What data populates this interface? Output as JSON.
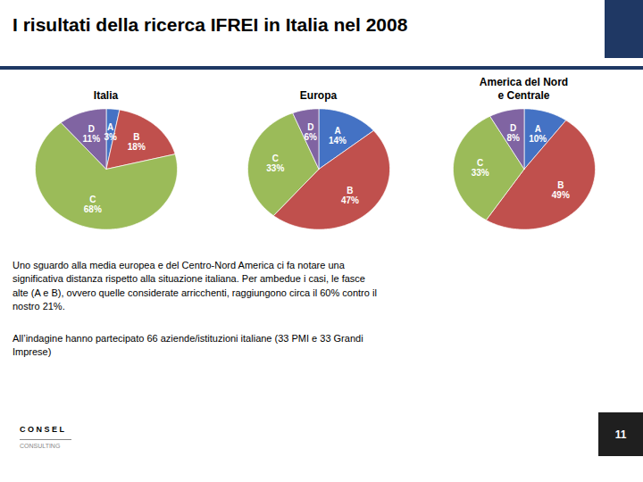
{
  "title": "I risultati della ricerca IFREI in Italia nel 2008",
  "chart_data": [
    {
      "type": "pie",
      "title": "Italia",
      "categories": [
        "A",
        "B",
        "C",
        "D"
      ],
      "values": [
        3,
        18,
        68,
        11
      ],
      "value_labels": [
        "3%",
        "18%",
        "68%",
        "11%"
      ],
      "colors": [
        "#4472C4",
        "#C0504D",
        "#9BBB59",
        "#8064A2"
      ],
      "data_labels": true
    },
    {
      "type": "pie",
      "title": "Europa",
      "categories": [
        "A",
        "B",
        "C",
        "D"
      ],
      "values": [
        14,
        47,
        33,
        6
      ],
      "value_labels": [
        "14%",
        "47%",
        "33%",
        "6%"
      ],
      "colors": [
        "#4472C4",
        "#C0504D",
        "#9BBB59",
        "#8064A2"
      ],
      "data_labels": true
    },
    {
      "type": "pie",
      "title": "America del Nord\ne Centrale",
      "categories": [
        "A",
        "B",
        "C",
        "D"
      ],
      "values": [
        10,
        49,
        33,
        8
      ],
      "value_labels": [
        "10%",
        "49%",
        "33%",
        "8%"
      ],
      "colors": [
        "#4472C4",
        "#C0504D",
        "#9BBB59",
        "#8064A2"
      ],
      "data_labels": true
    }
  ],
  "annotations": [
    "Uno sguardo alla media europea e del Centro-Nord America ci fa notare una\nsignificativa distanza rispetto alla situazione italiana. Per ambedue i casi, le fasce\nalte (A e B), ovvero quelle considerate arricchenti, raggiungono circa il 60% contro il\nnostro 21%.",
    "All’indagine hanno partecipato 66 aziende/istituzioni italiane (33 PMI e 33 Grandi\nImprese)",
    "C O N S E L",
    "CONSULTING",
    "11"
  ]
}
